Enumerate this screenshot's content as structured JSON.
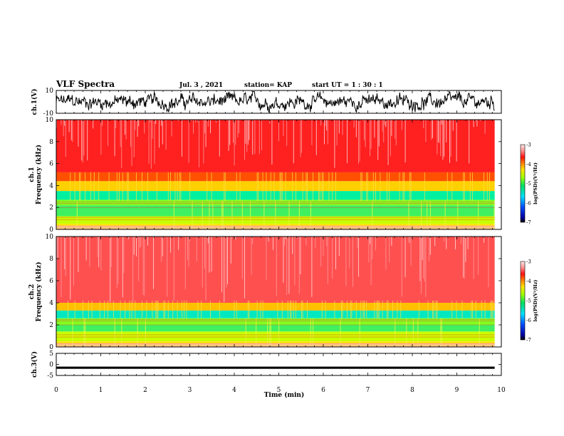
{
  "header": {
    "title": "VLF Spectra",
    "date": "Jul. 3 , 2021",
    "station": "station= KAP",
    "start": "start  UT =  1 : 30 : 1"
  },
  "chart_data": [
    {
      "type": "line",
      "ylabel": "ch.1(V)",
      "ylim": [
        -10,
        10
      ],
      "yticks": [
        "10",
        "-10"
      ],
      "xlim": [
        0,
        10
      ]
    },
    {
      "type": "heatmap",
      "ylabel": "ch.1\nFrequency  (kHz)",
      "ylabel_line1": "ch.1",
      "ylabel_line2": "Frequency  (kHz)",
      "ylim": [
        0,
        10
      ],
      "yticks": [
        "0",
        "2",
        "4",
        "6",
        "8",
        "10"
      ],
      "xlim": [
        0,
        10
      ],
      "data_end_min": 9.85,
      "colorbar": {
        "label": "log(PSD)(V²/Hz)",
        "range": [
          -7,
          -3
        ],
        "ticks": [
          "-3",
          "-4",
          "-5",
          "-6",
          "-7"
        ]
      }
    },
    {
      "type": "heatmap",
      "ylabel": "ch.2\nFrequency  (kHz)",
      "ylabel_line1": "ch.2",
      "ylabel_line2": "Frequency  (kHz)",
      "ylim": [
        0,
        10
      ],
      "yticks": [
        "0",
        "2",
        "4",
        "6",
        "8",
        "10"
      ],
      "xlim": [
        0,
        10
      ],
      "data_end_min": 9.85,
      "colorbar": {
        "label": "log(PSD)(V²/Hz)",
        "range": [
          -7,
          -3
        ],
        "ticks": [
          "-3",
          "-4",
          "-5",
          "-6",
          "-7"
        ]
      }
    },
    {
      "type": "line",
      "ylabel": "ch.3(V)",
      "ylim": [
        -5,
        5
      ],
      "yticks": [
        "5",
        "0",
        "-5"
      ],
      "xlim": [
        0,
        10
      ],
      "xlabel": "Time  (min)",
      "xticks": [
        "0",
        "1",
        "2",
        "3",
        "4",
        "5",
        "6",
        "7",
        "8",
        "9",
        "10"
      ]
    }
  ]
}
